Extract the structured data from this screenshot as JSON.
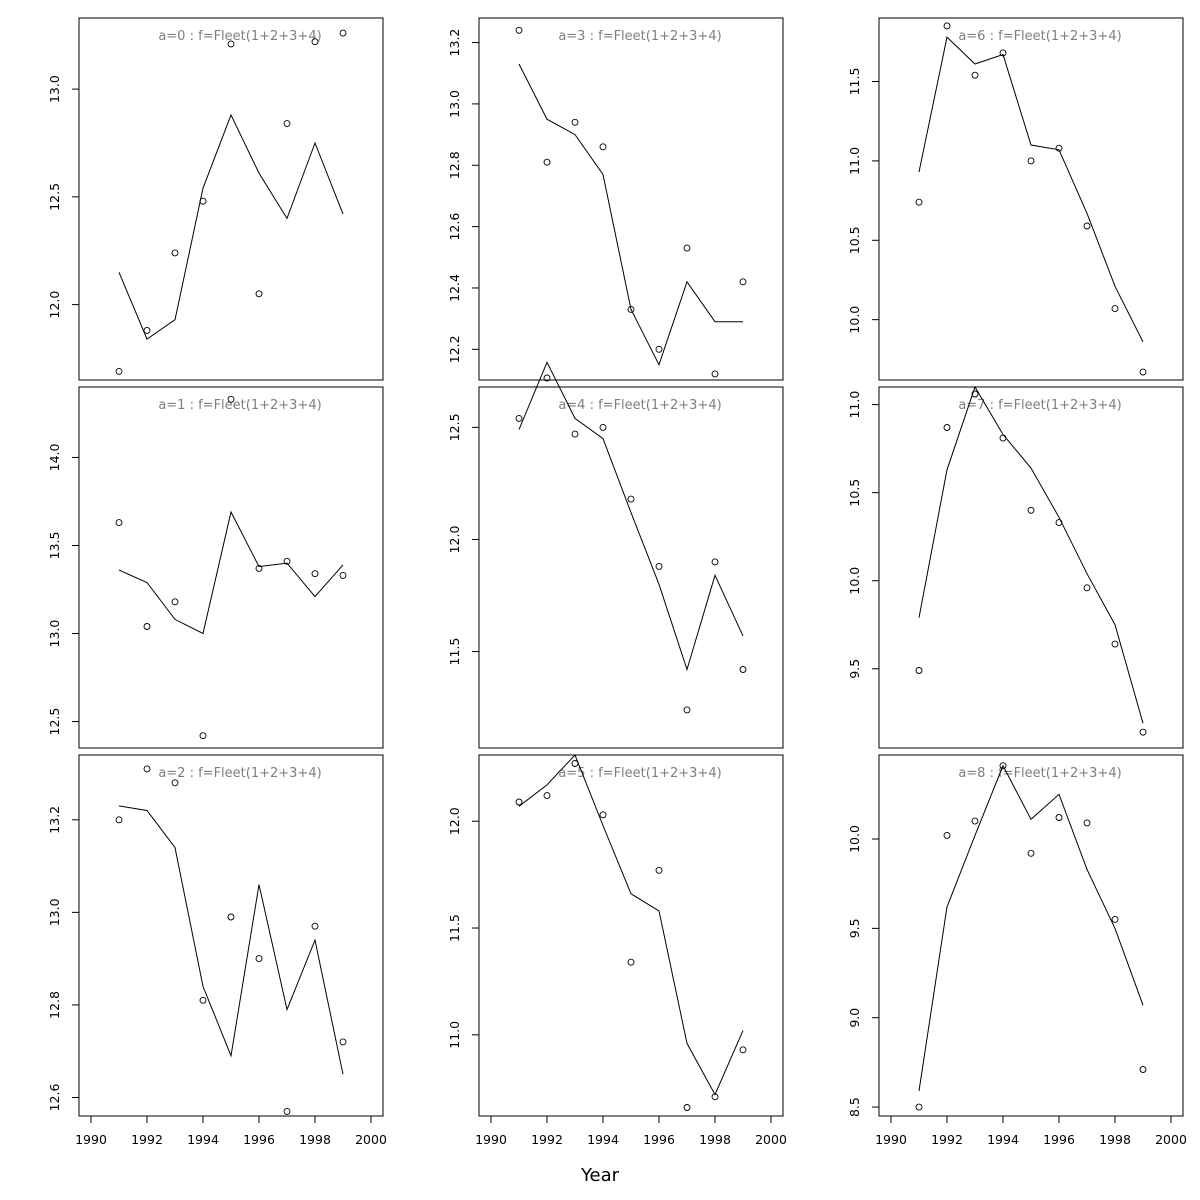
{
  "chart_data": {
    "type": "line",
    "xlabel": "Year",
    "x_ticks": [
      1990,
      1992,
      1994,
      1996,
      1998,
      2000
    ],
    "xlim": [
      1990,
      2000
    ],
    "x": [
      1991,
      1992,
      1993,
      1994,
      1995,
      1996,
      1997,
      1998,
      1999
    ],
    "panels": [
      {
        "title": "a=0  :  f=Fleet(1+2+3+4)",
        "ylim": [
          11.65,
          13.33
        ],
        "y_ticks": [
          "12.0",
          "12.5",
          "13.0"
        ],
        "observed": [
          11.69,
          11.88,
          12.24,
          12.48,
          13.21,
          12.05,
          12.84,
          13.22,
          13.26
        ],
        "fitted": [
          12.15,
          11.84,
          11.93,
          12.54,
          12.88,
          12.61,
          12.4,
          12.75,
          12.42
        ]
      },
      {
        "title": "a=1  :  f=Fleet(1+2+3+4)",
        "ylim": [
          12.35,
          14.4
        ],
        "y_ticks": [
          "12.5",
          "13.0",
          "13.5",
          "14.0"
        ],
        "observed": [
          13.63,
          13.04,
          13.18,
          12.42,
          14.33,
          13.37,
          13.41,
          13.34,
          13.33
        ],
        "fitted": [
          13.36,
          13.29,
          13.08,
          13.0,
          13.69,
          13.38,
          13.4,
          13.21,
          13.39
        ]
      },
      {
        "title": "a=2  :  f=Fleet(1+2+3+4)",
        "ylim": [
          12.56,
          13.34
        ],
        "y_ticks": [
          "12.6",
          "12.8",
          "13.0",
          "13.2"
        ],
        "observed": [
          13.2,
          13.31,
          13.28,
          12.81,
          12.99,
          12.9,
          12.57,
          12.97,
          12.72
        ],
        "fitted": [
          13.23,
          13.22,
          13.14,
          12.84,
          12.69,
          13.06,
          12.79,
          12.94,
          12.65
        ]
      },
      {
        "title": "a=3  :  f=Fleet(1+2+3+4)",
        "ylim": [
          12.1,
          13.28
        ],
        "y_ticks": [
          "12.2",
          "12.4",
          "12.6",
          "12.8",
          "13.0",
          "13.2"
        ],
        "observed": [
          13.24,
          12.81,
          12.94,
          12.86,
          12.33,
          12.2,
          12.53,
          12.12,
          12.42
        ],
        "fitted": [
          13.13,
          12.95,
          12.9,
          12.77,
          12.33,
          12.15,
          12.42,
          12.29,
          12.29
        ]
      },
      {
        "title": "a=4  :  f=Fleet(1+2+3+4)",
        "ylim": [
          11.07,
          12.68
        ],
        "y_ticks": [
          "11.5",
          "12.0",
          "12.5"
        ],
        "observed": [
          12.54,
          12.72,
          12.47,
          12.5,
          12.18,
          11.88,
          11.24,
          11.9,
          11.42
        ],
        "fitted": [
          12.49,
          12.79,
          12.54,
          12.45,
          12.12,
          11.8,
          11.42,
          11.84,
          11.57
        ]
      },
      {
        "title": "a=5  :  f=Fleet(1+2+3+4)",
        "ylim": [
          10.62,
          12.31
        ],
        "y_ticks": [
          "11.0",
          "11.5",
          "12.0"
        ],
        "observed": [
          12.09,
          12.12,
          12.27,
          12.03,
          11.34,
          11.77,
          10.66,
          10.71,
          10.93
        ],
        "fitted": [
          12.07,
          12.17,
          12.31,
          11.98,
          11.66,
          11.58,
          10.96,
          10.72,
          11.02
        ]
      },
      {
        "title": "a=6  :  f=Fleet(1+2+3+4)",
        "ylim": [
          9.62,
          11.9
        ],
        "y_ticks": [
          "10.0",
          "10.5",
          "11.0",
          "11.5"
        ],
        "observed": [
          10.74,
          11.85,
          11.54,
          11.68,
          11.0,
          11.08,
          10.59,
          10.07,
          9.67
        ],
        "fitted": [
          10.93,
          11.78,
          11.61,
          11.67,
          11.1,
          11.07,
          10.67,
          10.21,
          9.86
        ]
      },
      {
        "title": "a=7  :  f=Fleet(1+2+3+4)",
        "ylim": [
          9.05,
          11.1
        ],
        "y_ticks": [
          "9.5",
          "10.0",
          "10.5",
          "11.0"
        ],
        "observed": [
          9.49,
          10.87,
          11.06,
          10.81,
          10.4,
          10.33,
          9.96,
          9.64,
          9.14
        ],
        "fitted": [
          9.79,
          10.63,
          11.1,
          10.83,
          10.64,
          10.36,
          10.04,
          9.75,
          9.19
        ]
      },
      {
        "title": "a=8  :  f=Fleet(1+2+3+4)",
        "ylim": [
          8.45,
          10.47
        ],
        "y_ticks": [
          "8.5",
          "9.0",
          "9.5",
          "10.0"
        ],
        "observed": [
          8.5,
          10.02,
          10.1,
          10.41,
          9.92,
          10.12,
          10.09,
          9.55,
          8.71
        ],
        "fitted": [
          8.59,
          9.62,
          10.02,
          10.41,
          10.11,
          10.25,
          9.83,
          9.5,
          9.07
        ]
      }
    ]
  }
}
